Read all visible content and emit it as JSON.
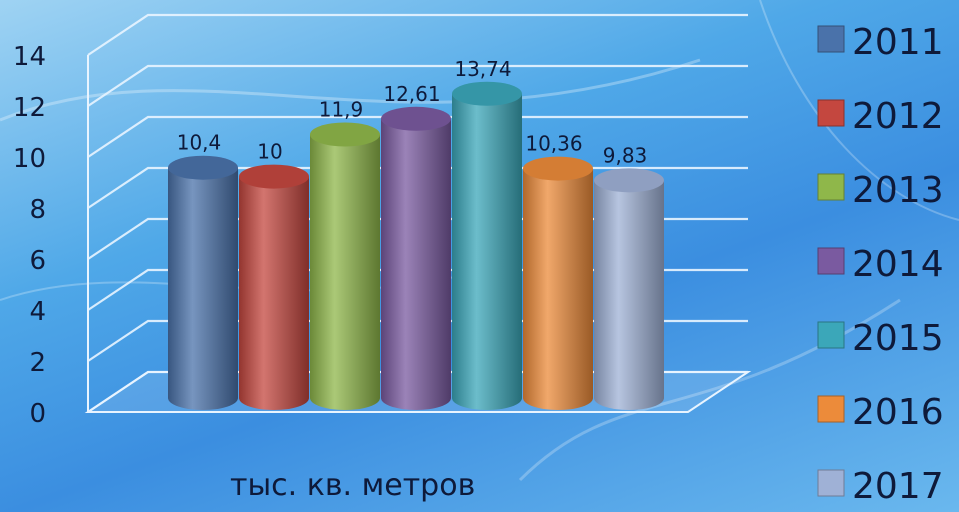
{
  "chart_data": {
    "type": "bar",
    "categories": [
      "2011",
      "2012",
      "2013",
      "2014",
      "2015",
      "2016",
      "2017"
    ],
    "values": [
      10.4,
      10,
      11.9,
      12.61,
      13.74,
      10.36,
      9.83
    ],
    "value_labels": [
      "10,4",
      "10",
      "11,9",
      "12,61",
      "13,74",
      "10,36",
      "9,83"
    ],
    "ylim": [
      0,
      14
    ],
    "yticks": [
      0,
      2,
      4,
      6,
      8,
      10,
      12,
      14
    ],
    "unit_label": "тыс. кв. метров",
    "legend_position": "right",
    "grid": true,
    "colors": [
      "#4a72aa",
      "#c4473f",
      "#8fb74a",
      "#7a5aa0",
      "#3ba7b9",
      "#ec8b3a",
      "#9fb1d6"
    ]
  }
}
